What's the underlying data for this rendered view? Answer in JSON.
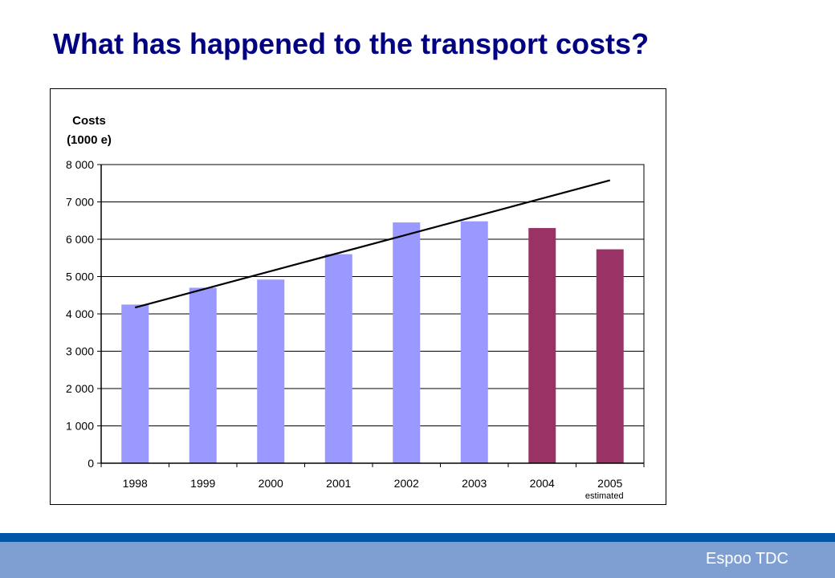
{
  "slide": {
    "title": "What has happened to the transport costs?",
    "footer": "Espoo TDC"
  },
  "colors": {
    "title": "#000080",
    "actual_bar": "#9999ff",
    "later_bar": "#993366",
    "trend_line": "#000000",
    "footer_stripe": "#0055a5",
    "footer_bar": "#7f9fd3"
  },
  "chart_data": {
    "type": "bar",
    "ylabel": [
      "Costs",
      "(1000 e)"
    ],
    "xlabel": "",
    "categories": [
      "1998",
      "1999",
      "2000",
      "2001",
      "2002",
      "2003",
      "2004",
      "2005"
    ],
    "category_notes": [
      "",
      "",
      "",
      "",
      "",
      "",
      "",
      "estimated"
    ],
    "values": [
      4250,
      4700,
      4920,
      5600,
      6450,
      6480,
      6300,
      5730
    ],
    "bar_colors": [
      "#9999ff",
      "#9999ff",
      "#9999ff",
      "#9999ff",
      "#9999ff",
      "#9999ff",
      "#993366",
      "#993366"
    ],
    "ylim": [
      0,
      8000
    ],
    "yticks": [
      0,
      1000,
      2000,
      3000,
      4000,
      5000,
      6000,
      7000,
      8000
    ],
    "ytick_labels": [
      "0",
      "1 000",
      "2 000",
      "3 000",
      "4 000",
      "5 000",
      "6 000",
      "7 000",
      "8 000"
    ],
    "grid": true,
    "legend": "none",
    "trend_line": {
      "x_start": "1998",
      "y_start": 4170,
      "x_end": "2005",
      "y_end": 7580
    }
  }
}
